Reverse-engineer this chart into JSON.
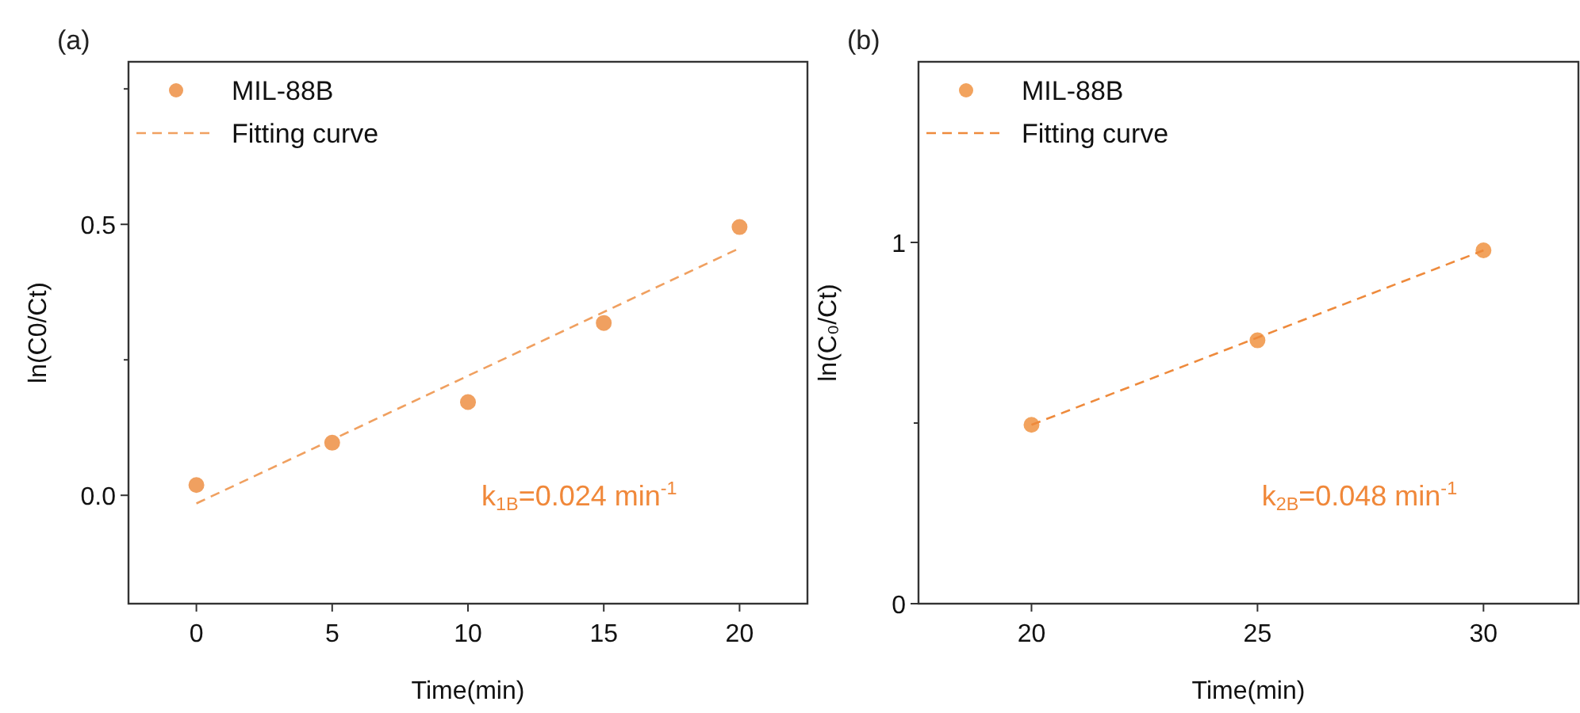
{
  "chart_data": [
    {
      "type": "scatter",
      "title": "(a)",
      "xlabel": "Time(min)",
      "ylabel": "ln(C0/Ct)",
      "xlim": [
        -2.5,
        22.5
      ],
      "xticks": [
        0,
        5,
        10,
        15,
        20
      ],
      "ylim": [
        -0.2,
        0.8
      ],
      "yticks": [
        {
          "value": 0,
          "label": "0.0"
        },
        {
          "value": 0.25,
          "label": null
        },
        {
          "value": 0.5,
          "label": "0.5"
        },
        {
          "value": 0.75,
          "label": null
        }
      ],
      "legend": "top left",
      "annotations": [
        "k$_{1B}$=0.024 min$^{-1}$"
      ],
      "series": [
        {
          "name": "MIL-88B",
          "marker": "circle",
          "color": "#f0a060",
          "x": [
            0,
            5,
            10,
            15,
            20
          ],
          "values": [
            0.019,
            0.097,
            0.172,
            0.318,
            0.495
          ]
        },
        {
          "name": "Fitting curve",
          "type": "line",
          "line_style": "dashed",
          "color": "#f0a060",
          "x": [
            0,
            20
          ],
          "values": [
            -0.015,
            0.456
          ]
        }
      ]
    },
    {
      "type": "scatter",
      "title": "(b)",
      "xlabel": "Time(min)",
      "ylabel": "ln(C₀/Ct)",
      "xlim": [
        17.5,
        32.1
      ],
      "xticks": [
        20,
        25,
        30
      ],
      "ylim": [
        0,
        1.5
      ],
      "yticks": [
        0,
        {
          "value": 0.5,
          "label": null
        },
        1
      ],
      "legend": "top left",
      "annotations": [
        "k$_{2B}$=0.048 min$^{-1}$"
      ],
      "series": [
        {
          "name": "MIL-88B",
          "marker": "circle",
          "color": "#f2a35e",
          "x": [
            20,
            25,
            30
          ],
          "values": [
            0.495,
            0.729,
            0.978
          ]
        },
        {
          "name": "Fitting curve",
          "type": "line",
          "line_style": "dashed",
          "color": "#ee8a3c",
          "x": [
            20,
            30
          ],
          "values": [
            0.495,
            0.978
          ]
        }
      ]
    }
  ]
}
